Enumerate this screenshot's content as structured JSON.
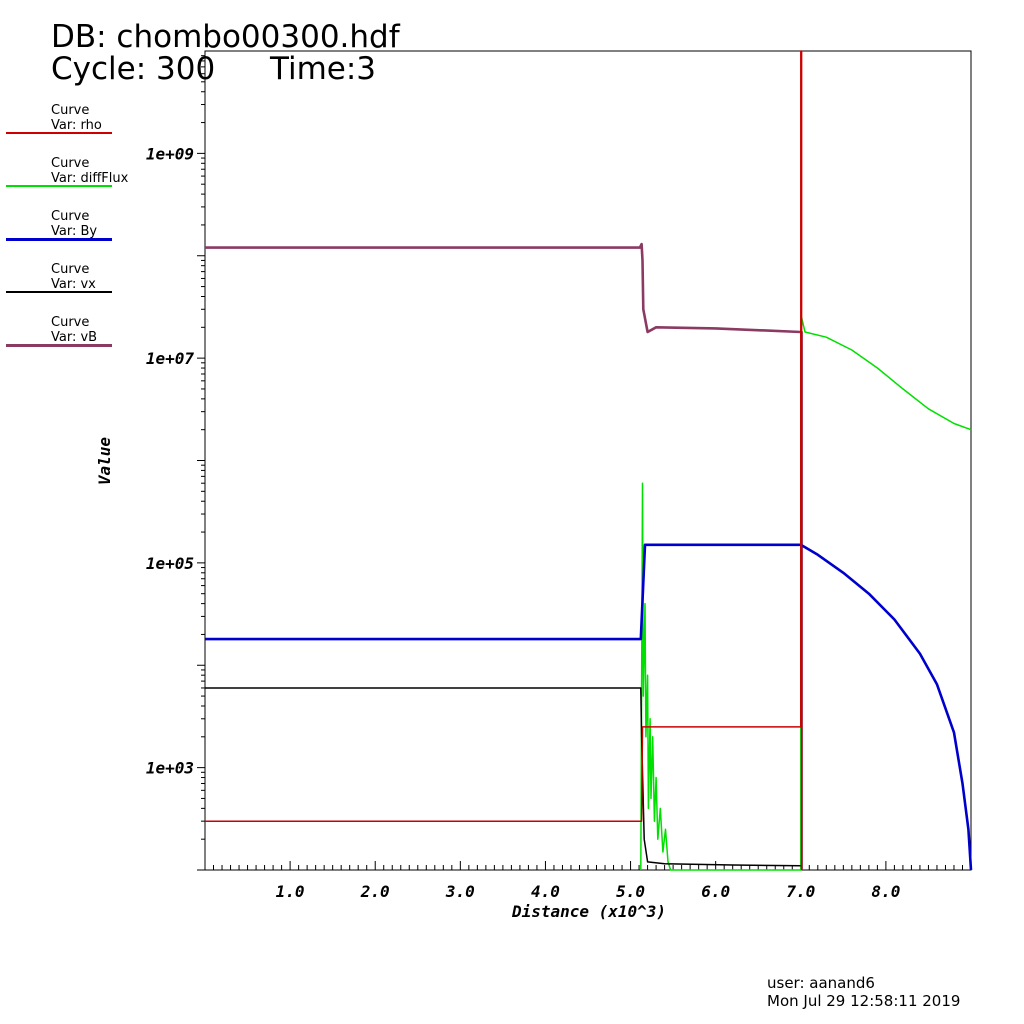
{
  "header": {
    "db_label": "DB: chombo00300.hdf",
    "cycle_label": "Cycle: 300",
    "time_label": "Time:3"
  },
  "legend": [
    {
      "line1": "Curve",
      "line2": "Var: rho",
      "color": "#cc0000"
    },
    {
      "line1": "Curve",
      "line2": "Var: diffFlux",
      "color": "#00e000"
    },
    {
      "line1": "Curve",
      "line2": "Var: By",
      "color": "#0000cc"
    },
    {
      "line1": "Curve",
      "line2": "Var: vx",
      "color": "#000000"
    },
    {
      "line1": "Curve",
      "line2": "Var: vB",
      "color": "#8b3a62"
    }
  ],
  "footer": {
    "user": "user: aanand6",
    "date": "Mon Jul 29 12:58:11 2019"
  },
  "chart_data": {
    "type": "line",
    "xlabel": "Distance (x10^3)",
    "ylabel": "Value",
    "xlim": [
      0,
      9
    ],
    "ylim": [
      100,
      10000000000
    ],
    "yscale": "log",
    "x_ticks": [
      "1.0",
      "2.0",
      "3.0",
      "4.0",
      "5.0",
      "6.0",
      "7.0",
      "8.0"
    ],
    "y_ticks": [
      "1e+03",
      "1e+05",
      "1e+07",
      "1e+09"
    ],
    "grid": false,
    "legend_position": "left",
    "series": [
      {
        "name": "rho",
        "color": "#cc0000",
        "x": [
          0,
          5.13,
          5.14,
          5.16,
          7.0,
          7.0,
          7.01,
          7.01
        ],
        "y": [
          300,
          300,
          2500,
          2500,
          2500,
          10000000000,
          10000000000,
          100
        ]
      },
      {
        "name": "diffFlux",
        "color": "#00e000",
        "x": [
          5.12,
          5.14,
          5.15,
          5.17,
          5.18,
          5.2,
          5.21,
          5.23,
          5.24,
          5.26,
          5.28,
          5.3,
          5.32,
          5.35,
          5.38,
          5.41,
          5.44,
          5.47,
          7.0,
          7.0,
          7.01,
          7.05,
          7.3,
          7.6,
          7.9,
          8.2,
          8.5,
          8.8,
          9.0
        ],
        "y": [
          100,
          600000,
          5000,
          40000,
          2000,
          8000,
          400,
          3000,
          500,
          2000,
          300,
          800,
          200,
          400,
          150,
          250,
          120,
          100,
          100,
          12000000,
          25000000,
          18000000,
          16000000,
          12000000,
          8000000,
          5000000,
          3200000,
          2300000,
          2000000
        ]
      },
      {
        "name": "By",
        "color": "#0000cc",
        "x": [
          0,
          5.12,
          5.17,
          7.0,
          7.2,
          7.5,
          7.8,
          8.1,
          8.4,
          8.6,
          8.8,
          8.9,
          8.97,
          9.0
        ],
        "y": [
          18000,
          18000,
          150000,
          150000,
          120000,
          80000,
          50000,
          28000,
          13000,
          6500,
          2200,
          700,
          250,
          100
        ]
      },
      {
        "name": "vx",
        "color": "#000000",
        "x": [
          0,
          5.12,
          5.13,
          5.16,
          5.2,
          5.4,
          6.2,
          7.0
        ],
        "y": [
          6000,
          6000,
          2000,
          200,
          120,
          115,
          112,
          110
        ]
      },
      {
        "name": "vB",
        "color": "#8b3a62",
        "x": [
          0,
          5.11,
          5.13,
          5.14,
          5.15,
          5.2,
          5.3,
          6.0,
          7.0,
          7.01,
          7.01
        ],
        "y": [
          120000000,
          120000000,
          130000000,
          90000000,
          30000000,
          18000000,
          20000000,
          19500000,
          18000000,
          18000000,
          100
        ]
      }
    ]
  }
}
